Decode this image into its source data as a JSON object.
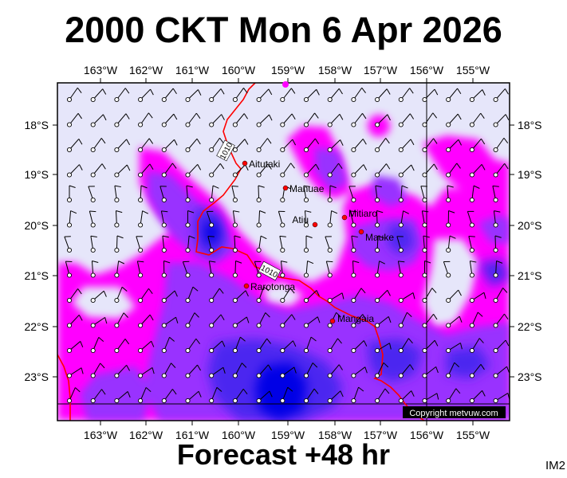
{
  "title": "2000 CKT Mon 6 Apr 2026",
  "footer": "Forecast +48 hr",
  "corner_code": "IM2",
  "copyright": "Copyright metvuw.com",
  "lon_ticks": [
    "163°W",
    "162°W",
    "161°W",
    "160°W",
    "159°W",
    "158°W",
    "157°W",
    "156°W",
    "155°W"
  ],
  "lat_ticks": [
    "18°S",
    "19°S",
    "20°S",
    "21°S",
    "22°S",
    "23°S"
  ],
  "isobars": [
    "1010",
    "1010"
  ],
  "places": [
    {
      "name": "Aitutaki"
    },
    {
      "name": "Manuae"
    },
    {
      "name": "Atiu"
    },
    {
      "name": "Mitiaro"
    },
    {
      "name": "Mauke"
    },
    {
      "name": "Rarotonga"
    },
    {
      "name": "Mangaia"
    }
  ],
  "colors": {
    "background": "#e6e6fa",
    "rain_light": "#ff00ff",
    "rain_medium": "#9933ff",
    "rain_heavy": "#4b28f0",
    "rain_extreme": "#0000e6",
    "isobar": "#ff0000",
    "place_marker": "#ff0000"
  }
}
